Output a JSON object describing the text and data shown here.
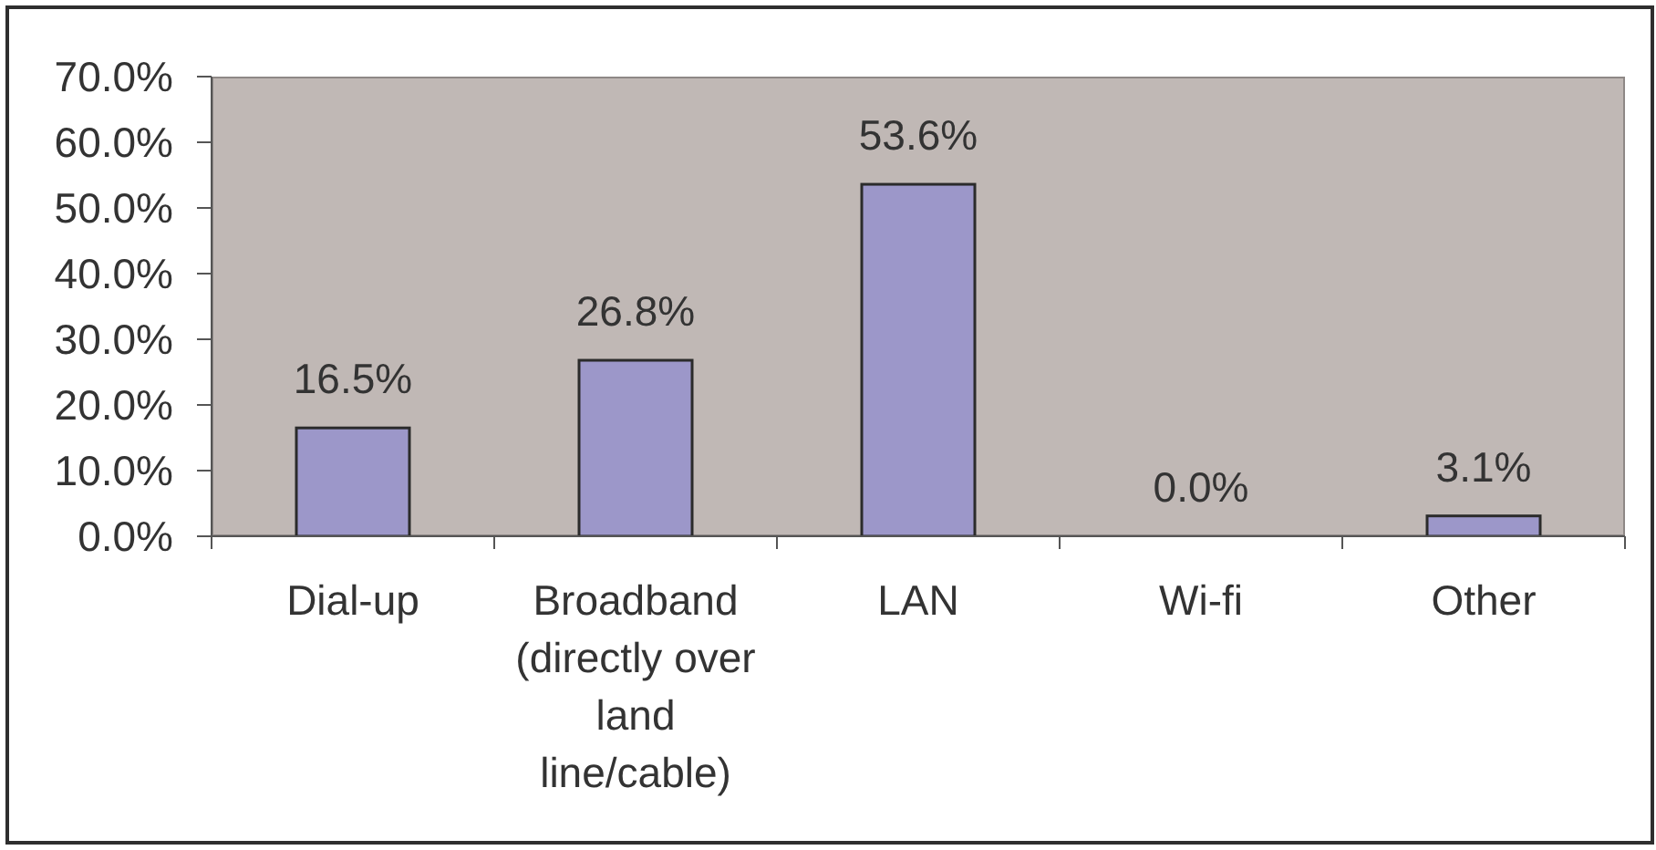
{
  "chart_data": {
    "type": "bar",
    "categories": [
      "Dial-up",
      "Broadband (directly over land line/cable)",
      "LAN",
      "Wi-fi",
      "Other"
    ],
    "values": [
      16.5,
      26.8,
      53.6,
      0,
      3.1
    ],
    "value_labels": [
      "16.5%",
      "26.8%",
      "53.6%",
      "0.0%",
      "3.1%"
    ],
    "color": "#9c97c9",
    "ylim": [
      0,
      70
    ],
    "yticks": [
      {
        "value": 0,
        "label": "0.0%"
      },
      {
        "value": 10,
        "label": "10.0%"
      },
      {
        "value": 20,
        "label": "20.0%"
      },
      {
        "value": 30,
        "label": "30.0%"
      },
      {
        "value": 40,
        "label": "40.0%"
      },
      {
        "value": 50,
        "label": "50.0%"
      },
      {
        "value": 60,
        "label": "60.0%"
      },
      {
        "value": 70,
        "label": "70.0%"
      }
    ]
  }
}
